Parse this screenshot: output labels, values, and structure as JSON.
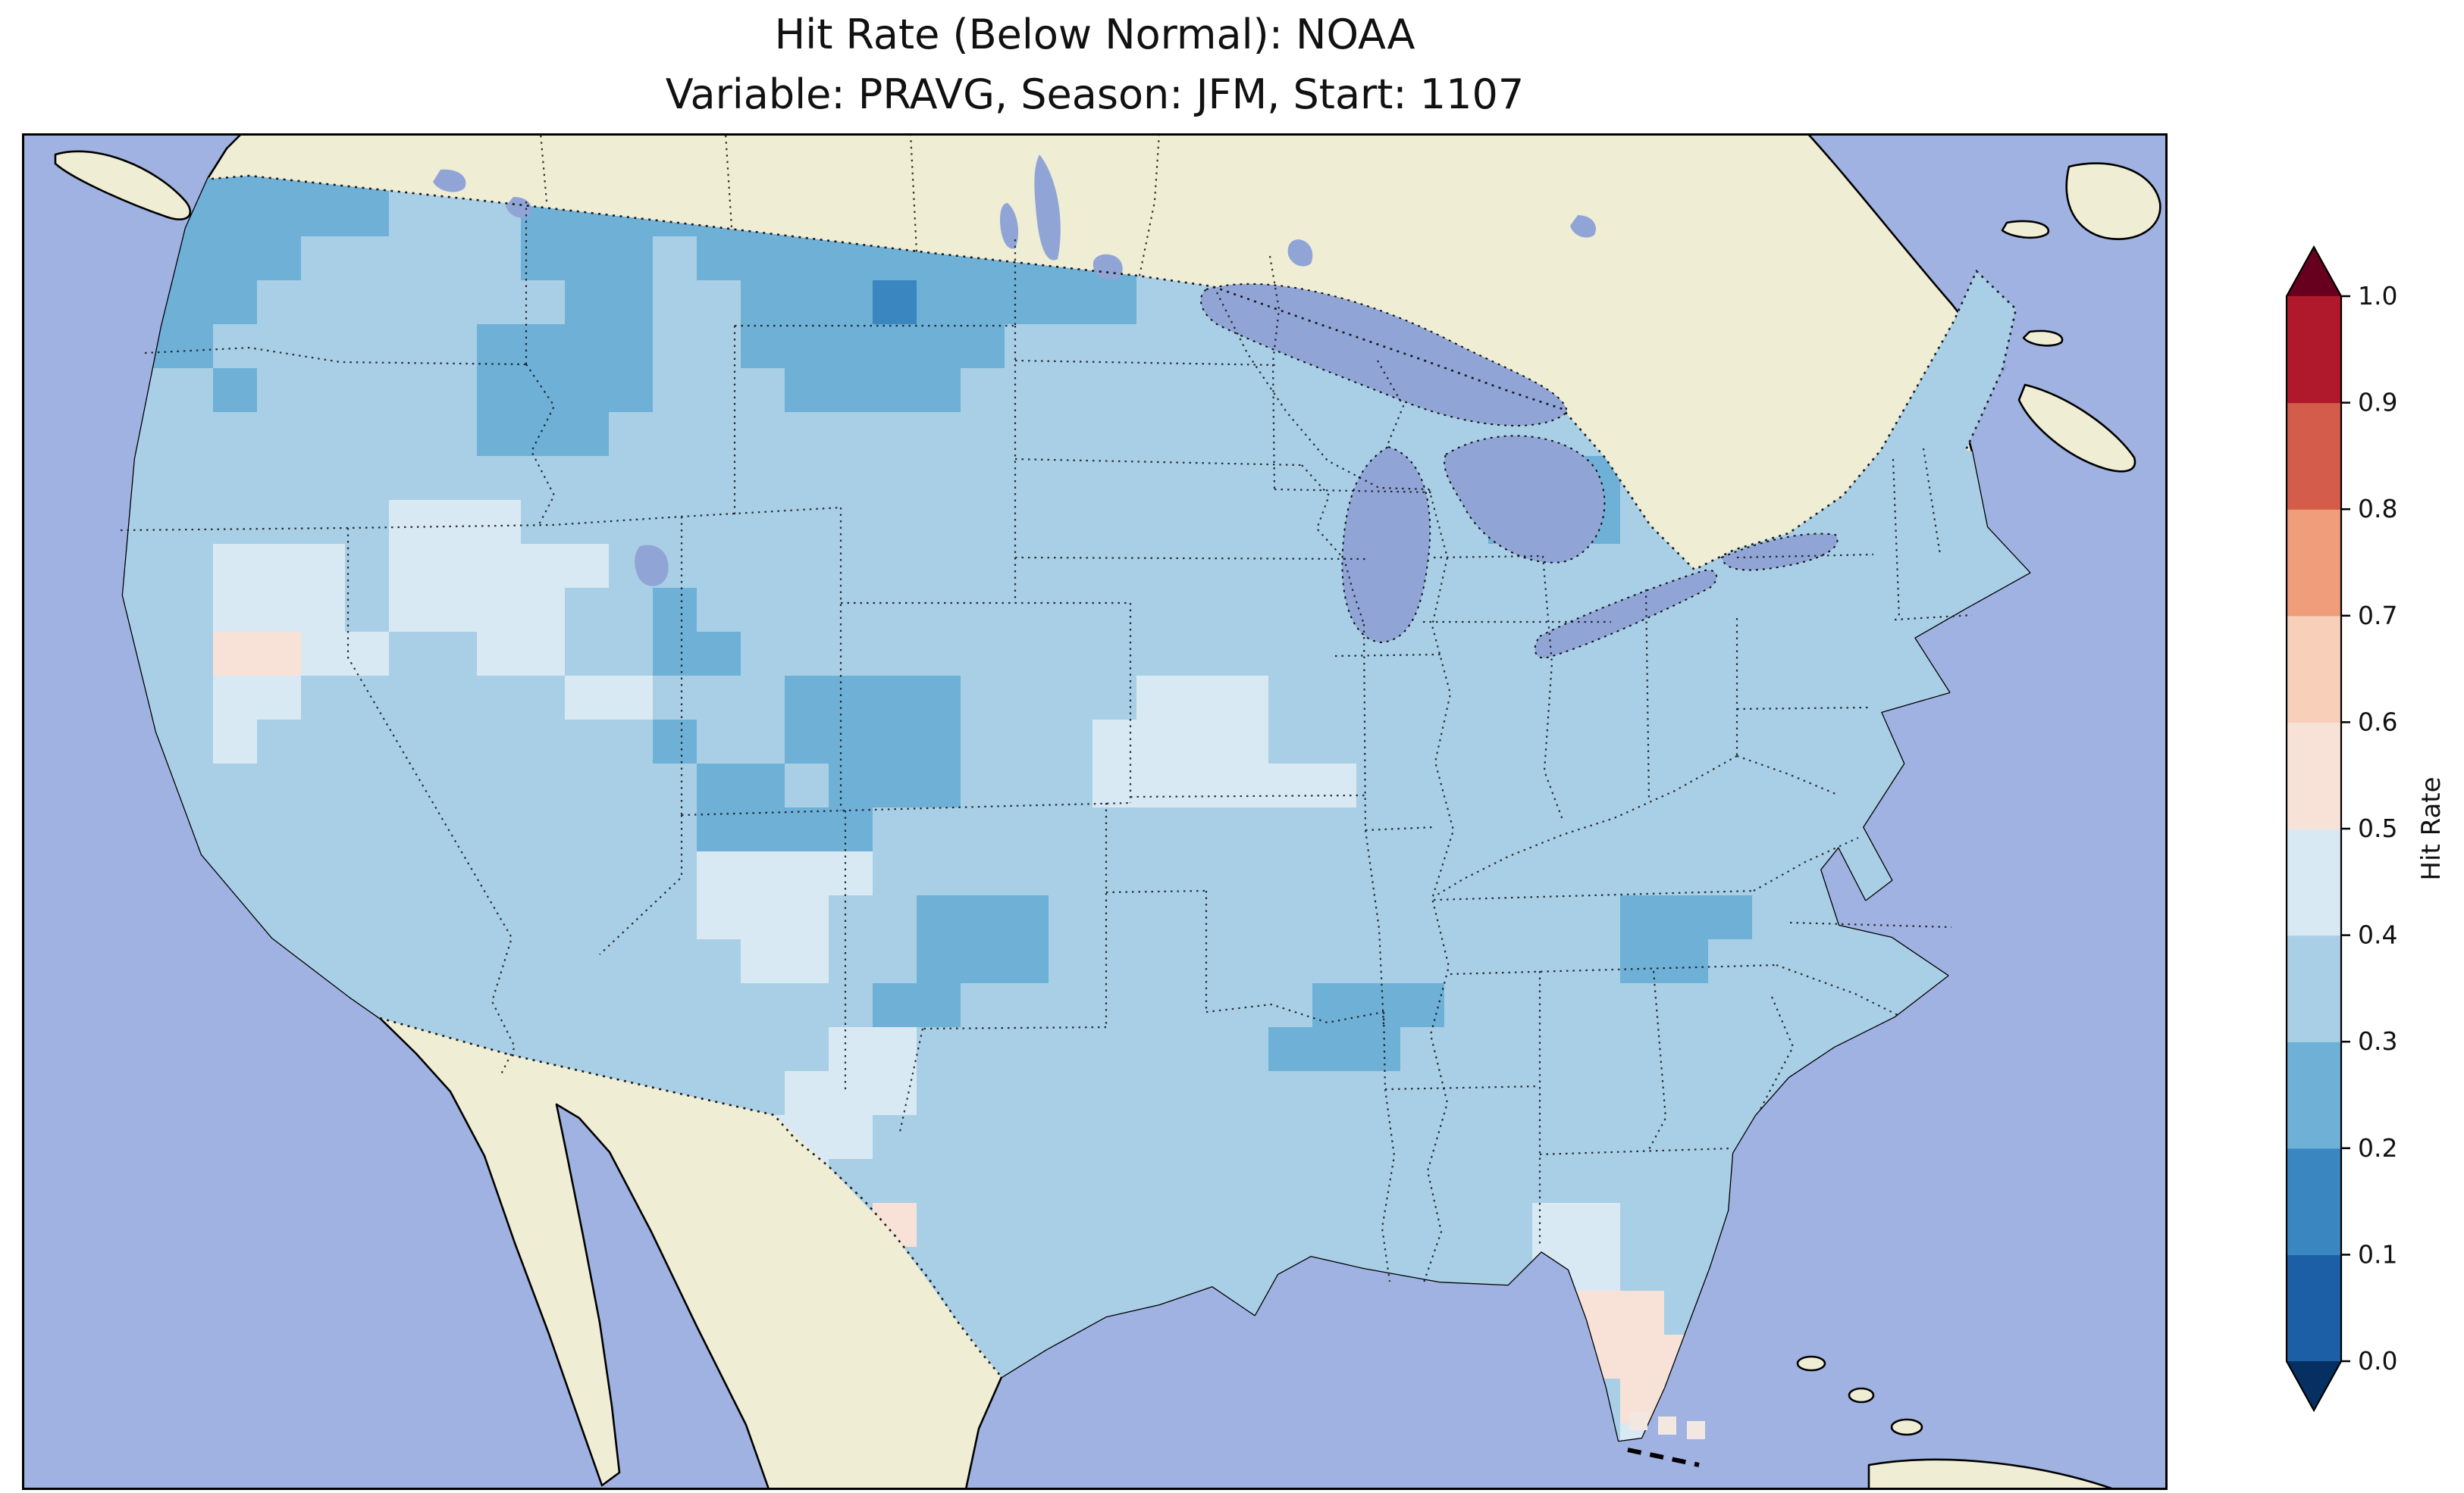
{
  "title": {
    "line1": "Hit Rate (Below Normal): NOAA",
    "line2": "Variable: PRAVG, Season: JFM, Start: 1107"
  },
  "colors": {
    "page_bg": "#ffffff",
    "ocean": "#a0b2e1",
    "land": "#f0edd5",
    "lake": "#90a5d6",
    "coastline": "#000000",
    "border": "#111111"
  },
  "chart_data": {
    "type": "heatmap",
    "title": "Hit Rate (Below Normal): NOAA",
    "subtitle": "Variable: PRAVG, Season: JFM, Start: 1107",
    "metric": "Hit Rate (Below Normal)",
    "source": "NOAA",
    "variable": "PRAVG",
    "season": "JFM",
    "start": "1107",
    "geography": "Contiguous United States (gridded field clipped to US border, ocean and Canada/Mexico masked)",
    "colorbar": {
      "label": "Hit Rate",
      "orientation": "vertical-right",
      "extend": "both",
      "levels": [
        0.0,
        0.1,
        0.2,
        0.3,
        0.4,
        0.5,
        0.6,
        0.7,
        0.8,
        0.9,
        1.0
      ],
      "ticks": [
        "0.0",
        "0.1",
        "0.2",
        "0.3",
        "0.4",
        "0.5",
        "0.6",
        "0.7",
        "0.8",
        "0.9",
        "1.0"
      ],
      "palette": [
        "#1d5fa6",
        "#3a86c0",
        "#6fb0d7",
        "#a9cfe6",
        "#d9e9f3",
        "#f8e2d8",
        "#f8cfb8",
        "#ef9d7a",
        "#d45c4b",
        "#b0192c"
      ],
      "under": "#053061",
      "over": "#67001f"
    },
    "grid": {
      "note": "Each character d encodes a hit-rate bin [d/10,(d+1)/10); row 0 = north, col 0 = west; cells clipped to the US outline",
      "cols": 48,
      "rows_count": 30,
      "rows": [
        "332222223333222222222222233333333333333333333333",
        "322222223332222222222222233333333333333333333333",
        "322222333332223222222222233333333333333333333333",
        "332223333333223322212222233333333333333333333333",
        "332233333322223322222233333333333333333344433333",
        "333323333322223332222333333333333333333333333333",
        "333333333322233333333333333333333333333333333333",
        "333333333333333333333333333333333222333333333333",
        "333333334443333333333333333333333222333333333333",
        "333344434444433333333333333333333333333333333333",
        "333344434444332333333333333333333333333333333333",
        "333355443344332233333333333333333333333333333333",
        "333344333333443332222333344433333333333333333333",
        "333343333333332332222333444433333333333333333333",
        "333333333333333223222333444444333333333333333333",
        "333333333333333222233333333333333333333333333333",
        "333333333333333444433333333333333333333333333333",
        "333333333333333444332223333333333333222333333333",
        "333333333333333344332223333333333333223333333333",
        "333333333333333333322333333332223333333333333333",
        "333333333333333333443333333322233333333333333333",
        "333333333333333334443333333333333333333333333333",
        "333333333333333344433333333333333333333333333333",
        "333333333333333344333333333333333333333333333333",
        "333333333333333333353333333333333344333333333333",
        "333333333333333333333333333333333344333333333333",
        "333333333333333333333333333333333335533333333333",
        "333333333333333333333333333333333335553333333333",
        "333333333333333333333333333333333333553333333333",
        "333333333333333333333333333333333333433333333333"
      ]
    }
  }
}
